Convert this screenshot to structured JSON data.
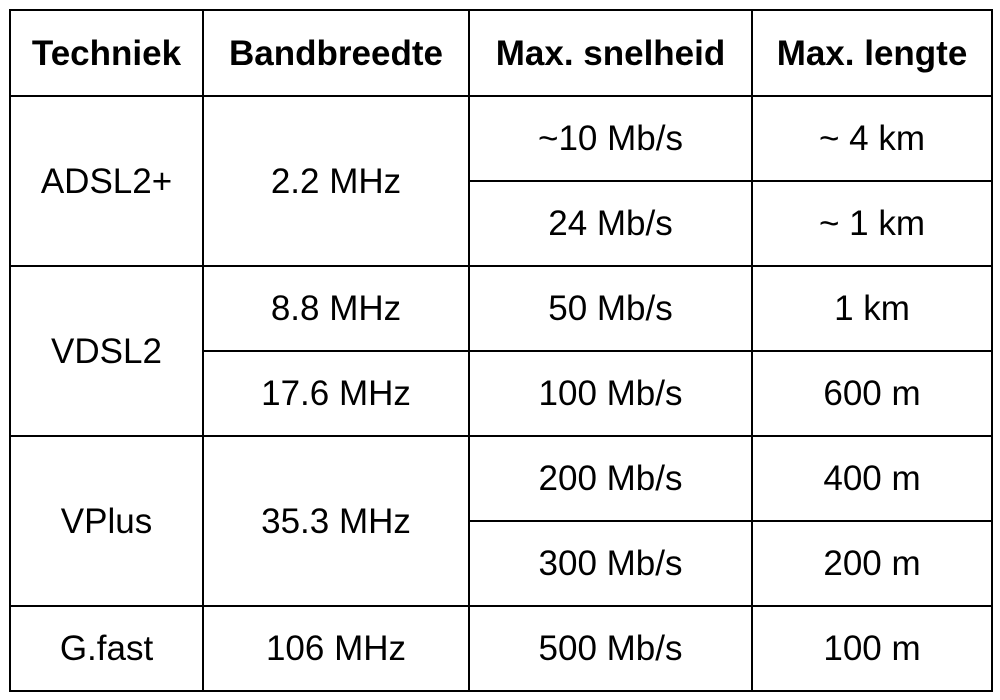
{
  "table": {
    "headers": [
      "Techniek",
      "Bandbreedte",
      "Max. snelheid",
      "Max. lengte"
    ],
    "groups": [
      {
        "technique": "ADSL2+",
        "bandwidths": [
          "2.2 MHz"
        ],
        "speeds": [
          "~10 Mb/s",
          "24 Mb/s"
        ],
        "lengths": [
          "~ 4 km",
          "~ 1 km"
        ]
      },
      {
        "technique": "VDSL2",
        "bandwidths": [
          "8.8 MHz",
          "17.6 MHz"
        ],
        "speeds": [
          "50 Mb/s",
          "100 Mb/s"
        ],
        "lengths": [
          "1 km",
          "600 m"
        ]
      },
      {
        "technique": "VPlus",
        "bandwidths": [
          "35.3 MHz"
        ],
        "speeds": [
          "200 Mb/s",
          "300 Mb/s"
        ],
        "lengths": [
          "400 m",
          "200 m"
        ]
      },
      {
        "technique": "G.fast",
        "bandwidths": [
          "106 MHz"
        ],
        "speeds": [
          "500 Mb/s"
        ],
        "lengths": [
          "100 m"
        ]
      }
    ]
  },
  "colors": {
    "text": "#000000",
    "border": "#000000",
    "background": "#ffffff"
  }
}
